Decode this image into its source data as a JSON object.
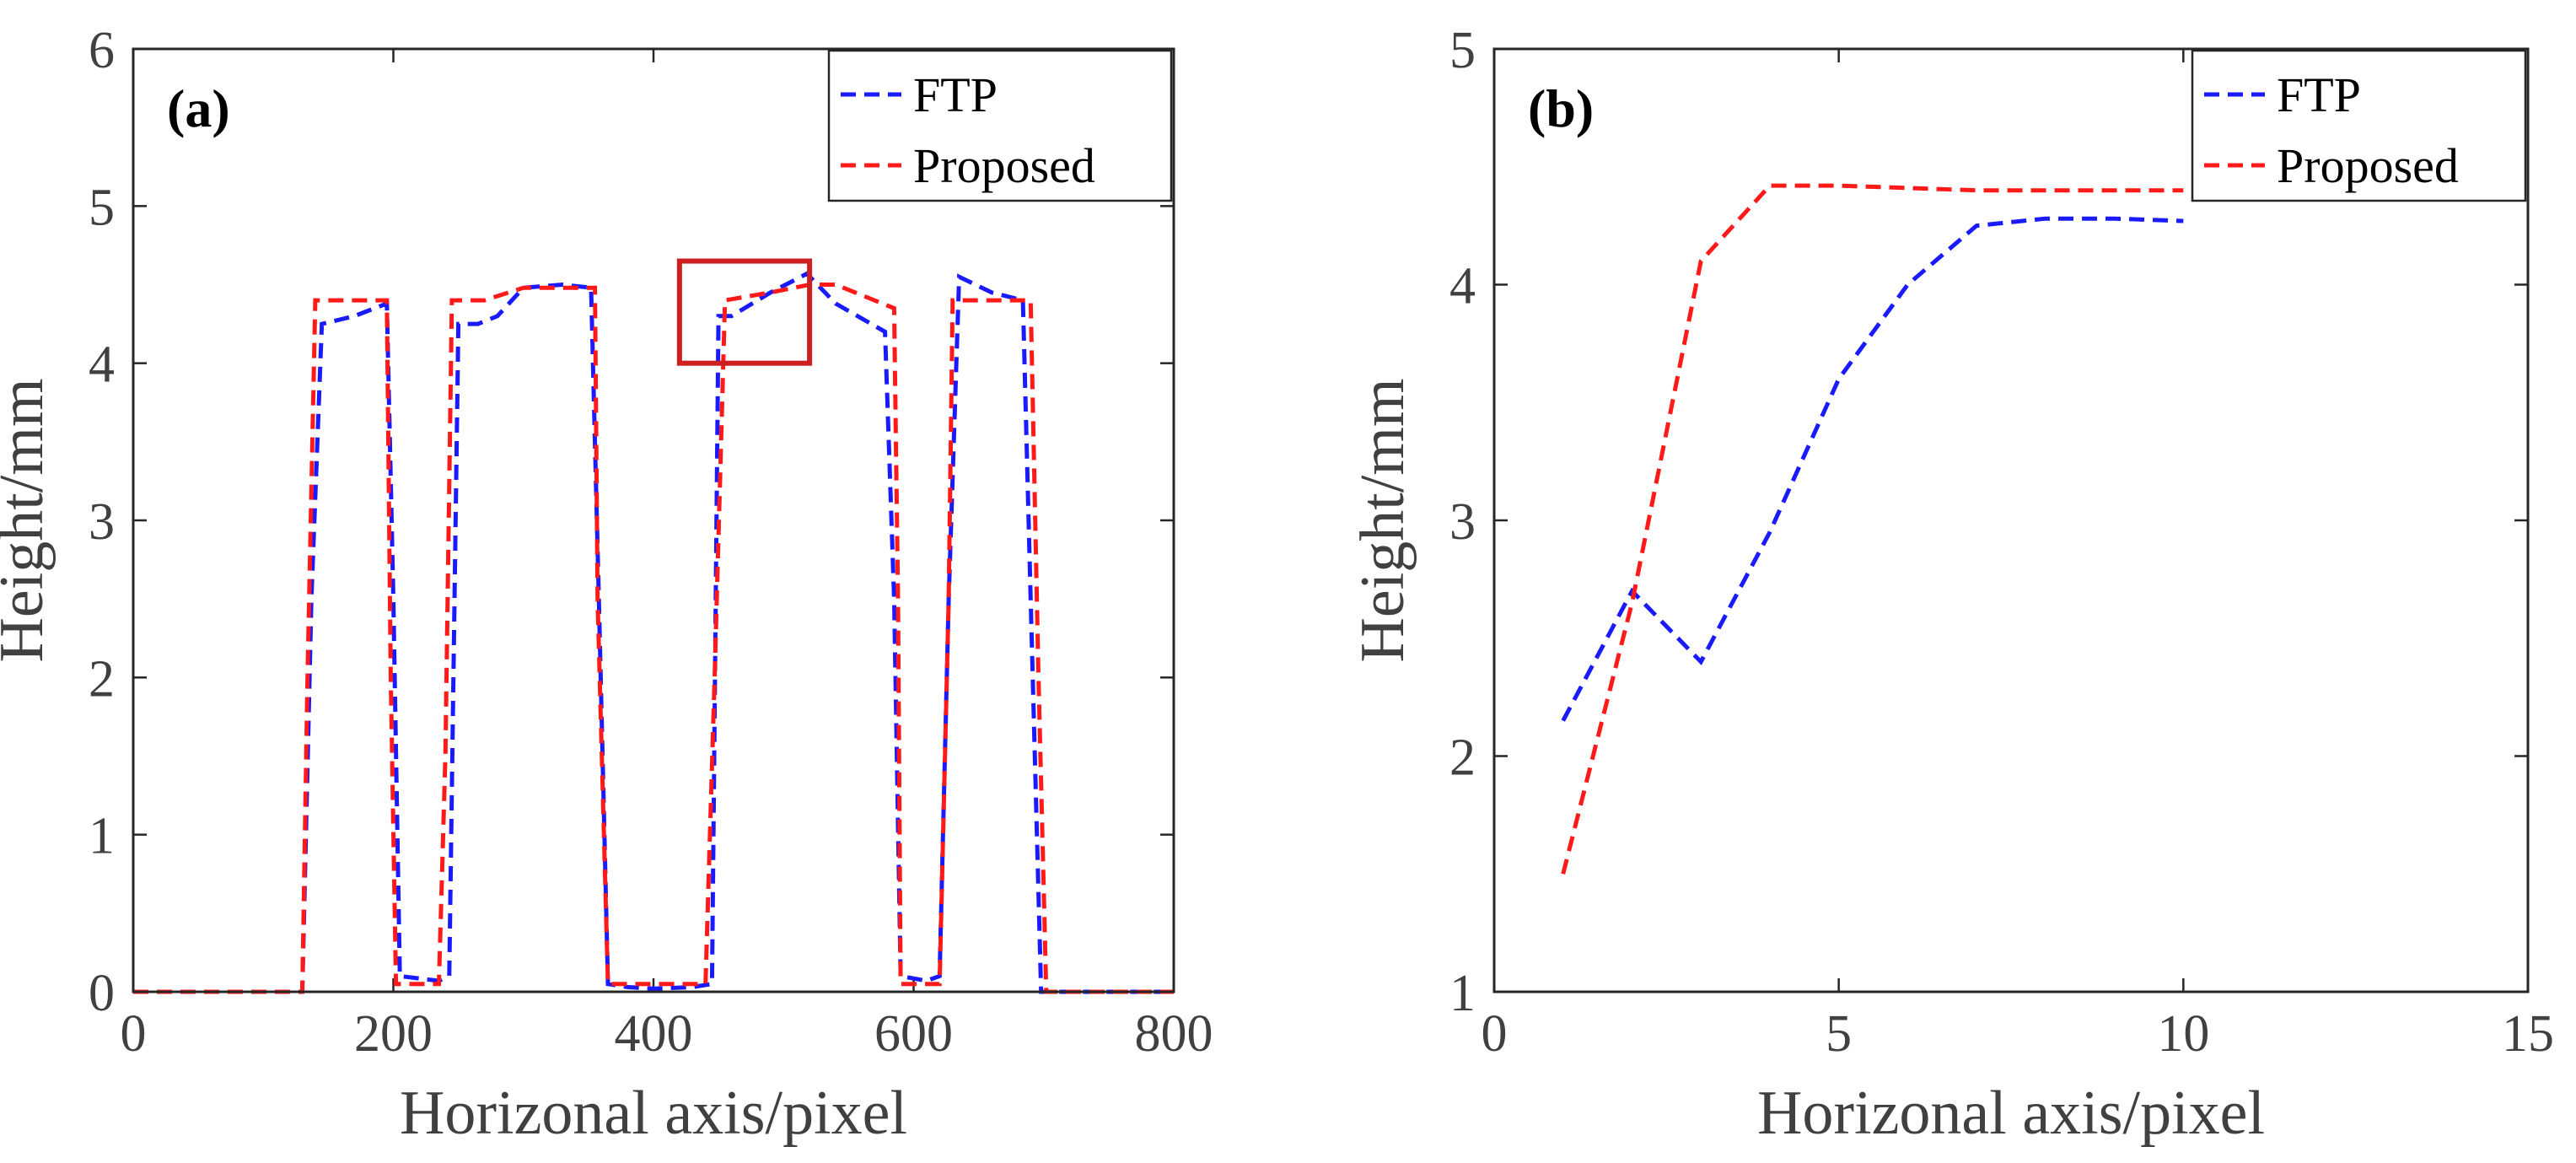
{
  "chart_data": [
    {
      "type": "line",
      "panel_label": "(a)",
      "title": "",
      "xlabel": "Horizonal axis/pixel",
      "ylabel": "Height/mm",
      "xlim": [
        0,
        800
      ],
      "ylim": [
        0,
        6
      ],
      "xticks": [
        0,
        200,
        400,
        600,
        800
      ],
      "yticks": [
        0,
        1,
        2,
        3,
        4,
        5,
        6
      ],
      "xtick_labels": [
        "0",
        "200",
        "400",
        "600",
        "800"
      ],
      "ytick_labels": [
        "0",
        "1",
        "2",
        "3",
        "4",
        "5",
        "6"
      ],
      "legend_position": "top-right",
      "highlight_box": {
        "x": [
          420,
          520
        ],
        "y": [
          4.0,
          4.65
        ],
        "color": "#cc1f1f"
      },
      "series": [
        {
          "name": "FTP",
          "color": "#1a1aff",
          "x": [
            0,
            130,
            137,
            145,
            170,
            195,
            200,
            205,
            235,
            243,
            250,
            265,
            280,
            300,
            330,
            352,
            358,
            365,
            380,
            400,
            430,
            445,
            450,
            460,
            490,
            518,
            540,
            578,
            585,
            590,
            610,
            620,
            627,
            635,
            660,
            684,
            690,
            698,
            710,
            800
          ],
          "y": [
            0,
            0,
            2.5,
            4.25,
            4.3,
            4.38,
            2.5,
            0.1,
            0.07,
            0.1,
            4.25,
            4.25,
            4.3,
            4.48,
            4.5,
            4.48,
            2.5,
            0.05,
            0.03,
            0.02,
            0.03,
            0.05,
            4.3,
            4.3,
            4.45,
            4.57,
            4.38,
            4.2,
            2.5,
            0.1,
            0.07,
            0.1,
            2.5,
            4.55,
            4.45,
            4.4,
            2.5,
            0,
            0,
            0
          ]
        },
        {
          "name": "Proposed",
          "color": "#ff1a1a",
          "x": [
            0,
            130,
            134,
            140,
            170,
            195,
            198,
            202,
            235,
            240,
            245,
            270,
            300,
            330,
            355,
            357,
            365,
            400,
            440,
            447,
            455,
            490,
            520,
            540,
            585,
            588,
            590,
            620,
            627,
            630,
            660,
            690,
            696,
            702,
            710,
            800
          ],
          "y": [
            0,
            0,
            2.0,
            4.4,
            4.4,
            4.4,
            2.0,
            0.05,
            0.05,
            1.5,
            4.4,
            4.4,
            4.48,
            4.48,
            4.48,
            2.5,
            0.05,
            0.05,
            0.05,
            2.0,
            4.4,
            4.45,
            4.5,
            4.5,
            4.35,
            2.5,
            0.05,
            0.05,
            2.5,
            4.4,
            4.4,
            4.4,
            2.0,
            0,
            0,
            0
          ]
        }
      ]
    },
    {
      "type": "line",
      "panel_label": "(b)",
      "title": "",
      "xlabel": "Horizonal axis/pixel",
      "ylabel": "Height/mm",
      "xlim": [
        0,
        15
      ],
      "ylim": [
        1,
        5
      ],
      "xticks": [
        0,
        5,
        10,
        15
      ],
      "yticks": [
        1,
        2,
        3,
        4,
        5
      ],
      "xtick_labels": [
        "0",
        "5",
        "10",
        "15"
      ],
      "ytick_labels": [
        "1",
        "2",
        "3",
        "4",
        "5"
      ],
      "legend_position": "top-right",
      "series": [
        {
          "name": "FTP",
          "color": "#1a1aff",
          "x": [
            1,
            2,
            3,
            4,
            5,
            6,
            7,
            8,
            9,
            10
          ],
          "y": [
            2.15,
            2.7,
            2.4,
            2.95,
            3.6,
            4.0,
            4.25,
            4.28,
            4.28,
            4.27
          ]
        },
        {
          "name": "Proposed",
          "color": "#ff1a1a",
          "x": [
            1,
            2,
            3,
            4,
            5,
            6,
            7,
            8,
            9,
            10
          ],
          "y": [
            1.5,
            2.65,
            4.1,
            4.42,
            4.42,
            4.41,
            4.4,
            4.4,
            4.4,
            4.4
          ]
        }
      ]
    }
  ]
}
